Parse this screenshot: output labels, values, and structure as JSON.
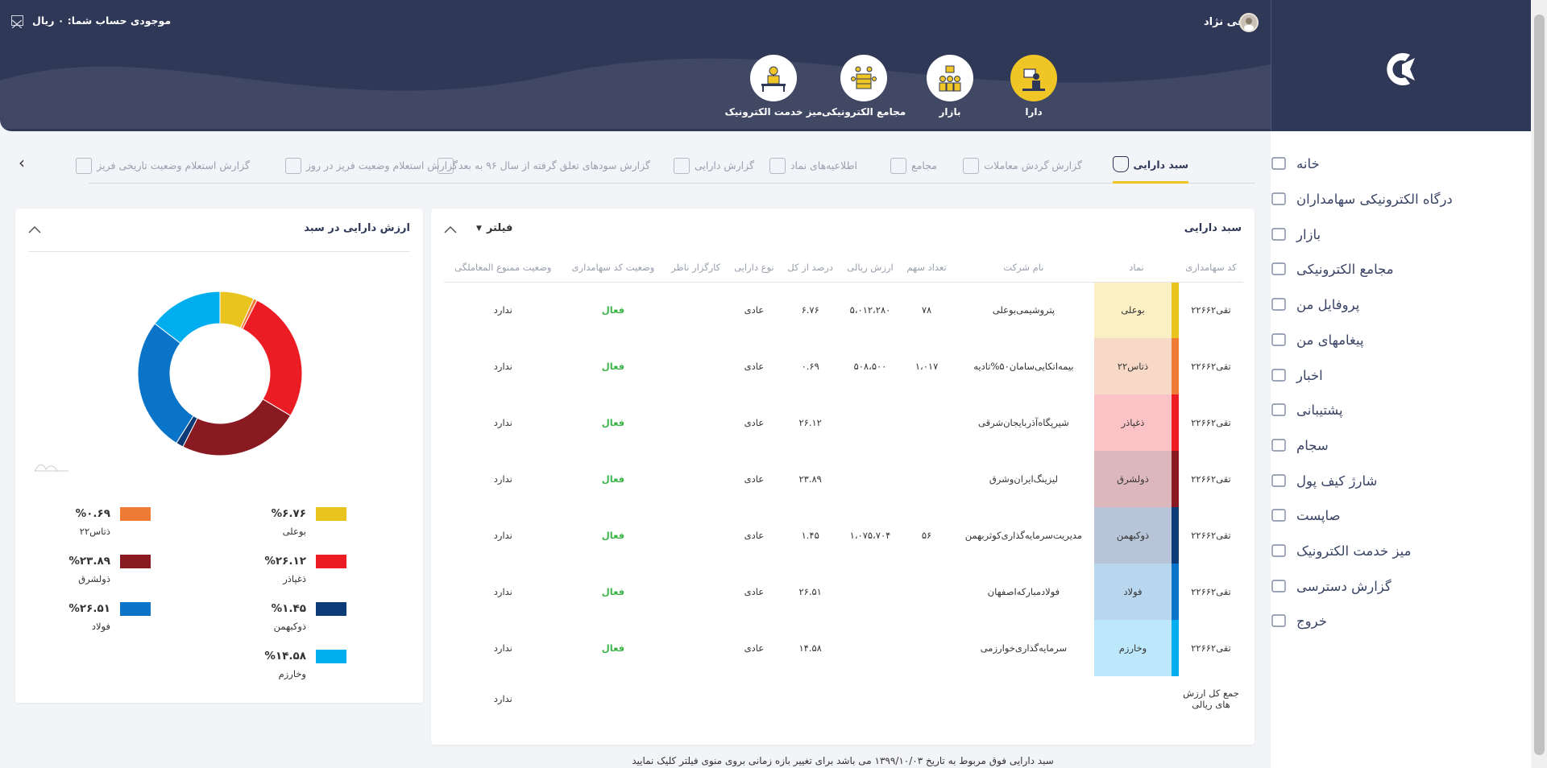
{
  "header": {
    "user_name": "تقی نژاد",
    "balance": "موجودی حساب شما: ۰ ریال",
    "apps": [
      {
        "label": "دارا",
        "active": true
      },
      {
        "label": "بازار",
        "active": false
      },
      {
        "label": "مجامع الکترونیکی",
        "active": false
      },
      {
        "label": "میز خدمت الکترونیک",
        "active": false
      }
    ]
  },
  "sidebar": {
    "items": [
      {
        "label": "خانه",
        "icon": "home-icon"
      },
      {
        "label": "درگاه الکترونیکی سهامداران",
        "icon": "gateway-icon"
      },
      {
        "label": "بازار",
        "icon": "market-icon"
      },
      {
        "label": "مجامع الکترونیکی",
        "icon": "assembly-icon"
      },
      {
        "label": "پروفایل من",
        "icon": "profile-icon"
      },
      {
        "label": "پیغامهای من",
        "icon": "mail-icon"
      },
      {
        "label": "اخبار",
        "icon": "news-icon"
      },
      {
        "label": "پشتیبانی",
        "icon": "info-icon"
      },
      {
        "label": "سجام",
        "icon": "sejam-icon"
      },
      {
        "label": "شارژ کیف پول",
        "icon": "wallet-icon"
      },
      {
        "label": "صاپست",
        "icon": "sapost-icon"
      },
      {
        "label": "میز خدمت الکترونیک",
        "icon": "service-desk-icon"
      },
      {
        "label": "گزارش دسترسی",
        "icon": "access-report-icon"
      },
      {
        "label": "خروج",
        "icon": "logout-icon"
      }
    ]
  },
  "tabs": [
    {
      "label": "سبد دارایی",
      "active": true
    },
    {
      "label": "گزارش گردش معاملات",
      "active": false
    },
    {
      "label": "مجامع",
      "active": false
    },
    {
      "label": "اطلاعیه‌های نماد",
      "active": false
    },
    {
      "label": "گزارش دارایی",
      "active": false
    },
    {
      "label": "گزارش سودهای تعلق گرفته از سال ۹۶ به بعد",
      "active": false
    },
    {
      "label": "گزارش استعلام وضعیت فریز در روز",
      "active": false
    },
    {
      "label": "گزارش استعلام وضعیت تاریخی فریز",
      "active": false
    }
  ],
  "portfolio": {
    "title": "سبد دارایی",
    "filter_label": "فیلتر",
    "columns": [
      "کد سهامداری",
      "نماد",
      "نام شرکت",
      "تعداد سهم",
      "ارزش ریالی",
      "درصد از کل",
      "نوع دارایی",
      "کارگزار ناظر",
      "وضعیت کد سهامداری",
      "وضعیت ممنوع المعاملگی"
    ],
    "rows": [
      {
        "code": "تقی۲۲۶۶۲",
        "symbol": "بوعلی",
        "company": "پتروشیمی‌بوعلی",
        "shares": "۷۸",
        "value": "۵،۰۱۲،۲۸۰",
        "percent": "۶.۷۶",
        "type": "عادی",
        "broker": "",
        "status": "فعال",
        "ban": "ندارد",
        "color": "#e9c41f",
        "bg": "#faf0c4"
      },
      {
        "code": "تقی۲۲۶۶۲",
        "symbol": "ذتاس۲۲",
        "company": "بیمه‌اتکایی‌سامان۵۰%تادیه",
        "shares": "۱،۰۱۷",
        "value": "۵۰۸،۵۰۰",
        "percent": "۰.۶۹",
        "type": "عادی",
        "broker": "",
        "status": "فعال",
        "ban": "ندارد",
        "color": "#ee7b35",
        "bg": "#f8d9c8"
      },
      {
        "code": "تقی۲۲۶۶۲",
        "symbol": "ذغپاذر",
        "company": "شیرپگاه‌آذربایجان‌شرقی",
        "shares": "",
        "value": "",
        "percent": "۲۶.۱۲",
        "type": "عادی",
        "broker": "",
        "status": "فعال",
        "ban": "ندارد",
        "color": "#ec1c24",
        "bg": "#fbc3c6"
      },
      {
        "code": "تقی۲۲۶۶۲",
        "symbol": "ذولشرق",
        "company": "لیزینگ‌ایران‌وشرق",
        "shares": "",
        "value": "",
        "percent": "۲۳.۸۹",
        "type": "عادی",
        "broker": "",
        "status": "فعال",
        "ban": "ندارد",
        "color": "#8a1a21",
        "bg": "#dcb8bd"
      },
      {
        "code": "تقی۲۲۶۶۲",
        "symbol": "ذوکبهمن",
        "company": "مدیریت‌سرمایه‌گذاری‌کوثربهمن",
        "shares": "۵۶",
        "value": "۱،۰۷۵،۷۰۴",
        "percent": "۱.۴۵",
        "type": "عادی",
        "broker": "",
        "status": "فعال",
        "ban": "ندارد",
        "color": "#0d3b78",
        "bg": "#b8c4d8"
      },
      {
        "code": "تقی۲۲۶۶۲",
        "symbol": "فولاد",
        "company": "فولادمبارکه‌اصفهان",
        "shares": "",
        "value": "",
        "percent": "۲۶.۵۱",
        "type": "عادی",
        "broker": "",
        "status": "فعال",
        "ban": "ندارد",
        "color": "#0a74c9",
        "bg": "#b8d6ee"
      },
      {
        "code": "تقی۲۲۶۶۲",
        "symbol": "وخارزم",
        "company": "سرمایه‌گذاری‌خوارزمی",
        "shares": "",
        "value": "",
        "percent": "۱۴.۵۸",
        "type": "عادی",
        "broker": "",
        "status": "فعال",
        "ban": "ندارد",
        "color": "#00aef0",
        "bg": "#bde8fb"
      }
    ],
    "total_label": "جمع کل ارزش های ریالی",
    "total_ban": "ندارد",
    "footnote": "سبد دارایی فوق مربوط به تاریخ ۱۳۹۹/۱۰/۰۳ می باشد برای تغییر بازه زمانی بروی منوی فیلتر کلیک نمایید"
  },
  "chart_panel": {
    "title": "ارزش دارایی در سبد"
  },
  "chart_data": {
    "type": "pie",
    "donut": true,
    "labels": [
      "بوعلی",
      "ذتاس۲۲",
      "ذغپاذر",
      "ذولشرق",
      "ذوکبهمن",
      "فولاد",
      "وخارزم"
    ],
    "values": [
      6.76,
      0.69,
      26.12,
      23.89,
      1.45,
      26.51,
      14.58
    ],
    "colors": [
      "#e9c41f",
      "#ee7b35",
      "#ec1c24",
      "#8a1a21",
      "#0d3b78",
      "#0a74c9",
      "#00aef0"
    ],
    "legend_labels": [
      "%۶.۷۶",
      "%۰.۶۹",
      "%۲۶.۱۲",
      "%۲۳.۸۹",
      "%۱.۴۵",
      "%۲۶.۵۱",
      "%۱۴.۵۸"
    ],
    "legend_position": "bottom"
  }
}
